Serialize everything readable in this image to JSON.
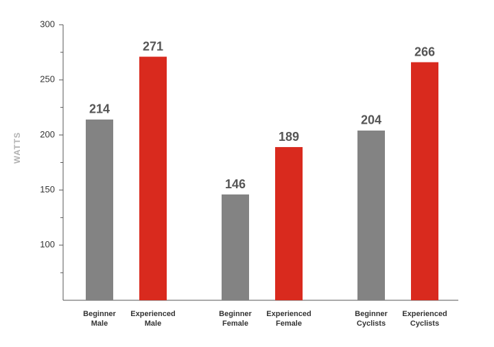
{
  "chart_data": {
    "type": "bar",
    "y_label": "WATTS",
    "categories": [
      [
        "Beginner",
        "Male"
      ],
      [
        "Experienced",
        "Male"
      ],
      [
        "Beginner",
        "Female"
      ],
      [
        "Experienced",
        "Female"
      ],
      [
        "Beginner",
        "Cyclists"
      ],
      [
        "Experienced",
        "Cyclists"
      ]
    ],
    "values": [
      214,
      271,
      146,
      189,
      204,
      266
    ],
    "colors": [
      "#838383",
      "#d92a1e",
      "#838383",
      "#d92a1e",
      "#838383",
      "#d92a1e"
    ],
    "ylim": [
      50,
      300
    ],
    "yticks": [
      100,
      150,
      200,
      250,
      300
    ],
    "minor_yticks": [
      75,
      125,
      175,
      225,
      275
    ]
  }
}
